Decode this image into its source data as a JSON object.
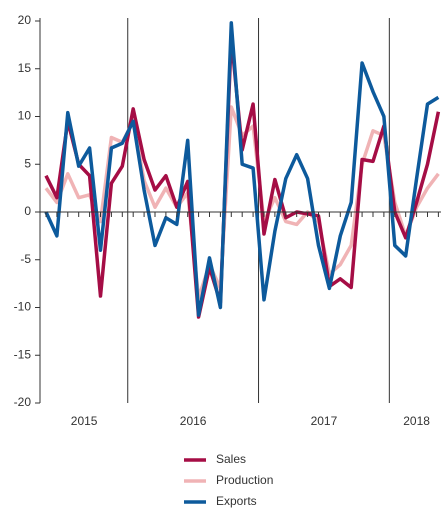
{
  "chart_data": {
    "type": "line",
    "x": [
      0,
      1,
      2,
      3,
      4,
      5,
      6,
      7,
      8,
      9,
      10,
      11,
      12,
      13,
      14,
      15,
      16,
      17,
      18,
      19,
      20,
      21,
      22,
      23,
      24,
      25,
      26,
      27,
      28,
      29,
      30,
      31,
      32,
      33,
      34,
      35,
      36
    ],
    "xlim": [
      -0.55,
      36.24
    ],
    "xticks": [
      {
        "value": 3.5,
        "label": "2015"
      },
      {
        "value": 13.5,
        "label": "2016"
      },
      {
        "value": 25.5,
        "label": "2017"
      },
      {
        "value": 34,
        "label": "2018"
      }
    ],
    "year_dividers": [
      7.5,
      19.5,
      31.5
    ],
    "ylim": [
      -20,
      20
    ],
    "yticks": [
      -20,
      -15,
      -10,
      -5,
      0,
      5,
      10,
      15,
      20
    ],
    "series": [
      {
        "name": "Sales",
        "color": "#a50d45",
        "values": [
          3.8,
          1.5,
          9.5,
          5,
          3.8,
          -8.8,
          3,
          4.8,
          10.8,
          5.5,
          2.3,
          3.8,
          0.5,
          3.2,
          -11,
          -5.8,
          -9.5,
          18.3,
          6.5,
          11.3,
          -2.3,
          3.4,
          -0.6,
          0,
          -0.2,
          -0.4,
          -7.8,
          -7,
          -7.9,
          5.5,
          5.3,
          9,
          0,
          -2.7,
          1,
          5,
          10.5
        ]
      },
      {
        "name": "Production",
        "color": "#f0b3b5",
        "values": [
          2.5,
          1,
          4,
          1.5,
          1.8,
          -1,
          7.8,
          7.3,
          9.5,
          3.3,
          0.5,
          2.5,
          0.5,
          2,
          -9,
          -5.5,
          -8,
          11,
          8,
          9,
          -1,
          1.5,
          -1,
          -1.3,
          0,
          -1,
          -6.5,
          -5.5,
          -3.5,
          5,
          8.5,
          8,
          1,
          -2.5,
          0.5,
          2.5,
          4
        ]
      },
      {
        "name": "Exports",
        "color": "#0d5a9c",
        "values": [
          0,
          -2.5,
          10.4,
          4.8,
          6.7,
          -4,
          6.7,
          7.2,
          9.5,
          2.3,
          -3.5,
          -0.6,
          -1.3,
          7.5,
          -10.8,
          -4.8,
          -10,
          19.8,
          5,
          4.6,
          -9.2,
          -2,
          3.5,
          6,
          3.5,
          -3.5,
          -8,
          -2.5,
          1,
          15.6,
          12.6,
          10,
          -3.5,
          -4.6,
          3.5,
          11.3,
          12
        ]
      }
    ]
  }
}
